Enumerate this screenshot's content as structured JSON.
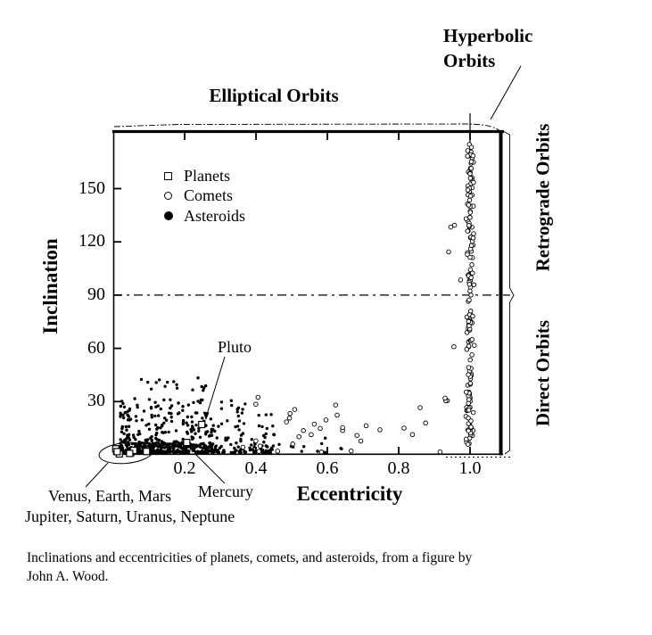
{
  "labels": {
    "elliptical_orbits": "Elliptical Orbits",
    "hyperbolic_orbits_line1": "Hyperbolic",
    "hyperbolic_orbits_line2": "Orbits",
    "retrograde_orbits": "Retrograde Orbits",
    "direct_orbits": "Direct Orbits",
    "pluto": "Pluto",
    "mercury": "Mercury",
    "inner_planets": "Venus, Earth, Mars",
    "outer_planets": "Jupiter, Saturn, Uranus, Neptune"
  },
  "legend": {
    "items": [
      {
        "label": "Planets",
        "marker": "open-square"
      },
      {
        "label": "Comets",
        "marker": "open-circle"
      },
      {
        "label": "Asteroids",
        "marker": "filled-circle"
      }
    ]
  },
  "caption": {
    "line1": "Inclinations and eccentricities of planets, comets, and asteroids, from a figure by",
    "line2": "John A. Wood."
  },
  "chart_data": {
    "type": "scatter",
    "xlabel": "Eccentricity",
    "ylabel": "Inclination",
    "xlim": [
      0,
      1.09
    ],
    "ylim": [
      0,
      183
    ],
    "x_ticks": {
      "values": [
        0.2,
        0.4,
        0.6,
        0.8,
        1.0
      ],
      "labels": [
        "0.2",
        "0.4",
        "0.6",
        "0.8",
        "1.0"
      ]
    },
    "y_ticks": {
      "values": [
        30,
        60,
        90,
        120,
        150
      ],
      "labels": [
        "30",
        "60",
        "90",
        "120",
        "150"
      ]
    },
    "reference_line": {
      "inclination": 90,
      "style": "dashed"
    },
    "hyperbolic_boundary_eccentricity": 1.0,
    "legend_entries": [
      "Planets",
      "Comets",
      "Asteroids"
    ],
    "planets": [
      {
        "name": "Mercury",
        "e": 0.206,
        "i": 7.0
      },
      {
        "name": "Venus",
        "e": 0.007,
        "i": 3.4
      },
      {
        "name": "Earth",
        "e": 0.017,
        "i": 0.5
      },
      {
        "name": "Mars",
        "e": 0.093,
        "i": 1.9
      },
      {
        "name": "Jupiter",
        "e": 0.049,
        "i": 1.3
      },
      {
        "name": "Saturn",
        "e": 0.057,
        "i": 2.5
      },
      {
        "name": "Uranus",
        "e": 0.046,
        "i": 0.8
      },
      {
        "name": "Neptune",
        "e": 0.011,
        "i": 1.8
      },
      {
        "name": "Pluto",
        "e": 0.248,
        "i": 17.1
      }
    ],
    "point_clouds": [
      {
        "name": "asteroids-spread",
        "marker": "filled-circle",
        "seed": 11,
        "count": 430,
        "e": {
          "min": 0.02,
          "span": 0.43,
          "pow": 1.5
        },
        "i": {
          "min": 0.3,
          "span": 31,
          "pow": 2.3
        }
      },
      {
        "name": "asteroids-dense",
        "marker": "filled-circle",
        "seed": 22,
        "count": 180,
        "e": {
          "min": 0.04,
          "span": 0.26,
          "pow": 1.0
        },
        "i": {
          "min": 0.3,
          "span": 6.5,
          "pow": 1.0
        }
      },
      {
        "name": "asteroids-high-incl",
        "marker": "filled-circle",
        "seed": 33,
        "count": 22,
        "e": {
          "min": 0.04,
          "span": 0.25,
          "pow": 1.0
        },
        "i": {
          "min": 27,
          "span": 17,
          "pow": 1.0
        }
      },
      {
        "name": "asteroids-tail",
        "marker": "filled-circle",
        "seed": 44,
        "count": 16,
        "e": {
          "min": 0.36,
          "span": 0.28,
          "pow": 1.0
        },
        "i": {
          "min": 0.5,
          "span": 12,
          "pow": 1.6
        }
      },
      {
        "name": "comets-band",
        "marker": "open-circle",
        "seed": 55,
        "count": 160,
        "e": {
          "min": 1.0,
          "span": 0,
          "pow": 1.0,
          "jitter": 0.01
        },
        "i": {
          "min": 3,
          "span": 172,
          "pow": 1.0
        }
      },
      {
        "name": "comets-near-band",
        "marker": "open-circle",
        "seed": 66,
        "count": 8,
        "e": {
          "min": 0.93,
          "span": 0.045,
          "pow": 1.0
        },
        "i": {
          "min": 30,
          "span": 115,
          "pow": 1.0
        }
      },
      {
        "name": "comets-scattered",
        "marker": "open-circle",
        "seed": 77,
        "count": 34,
        "e": {
          "min": 0.33,
          "span": 0.6,
          "pow": 1.0
        },
        "i": {
          "min": 1,
          "span": 36,
          "pow": 1.4
        }
      }
    ]
  }
}
